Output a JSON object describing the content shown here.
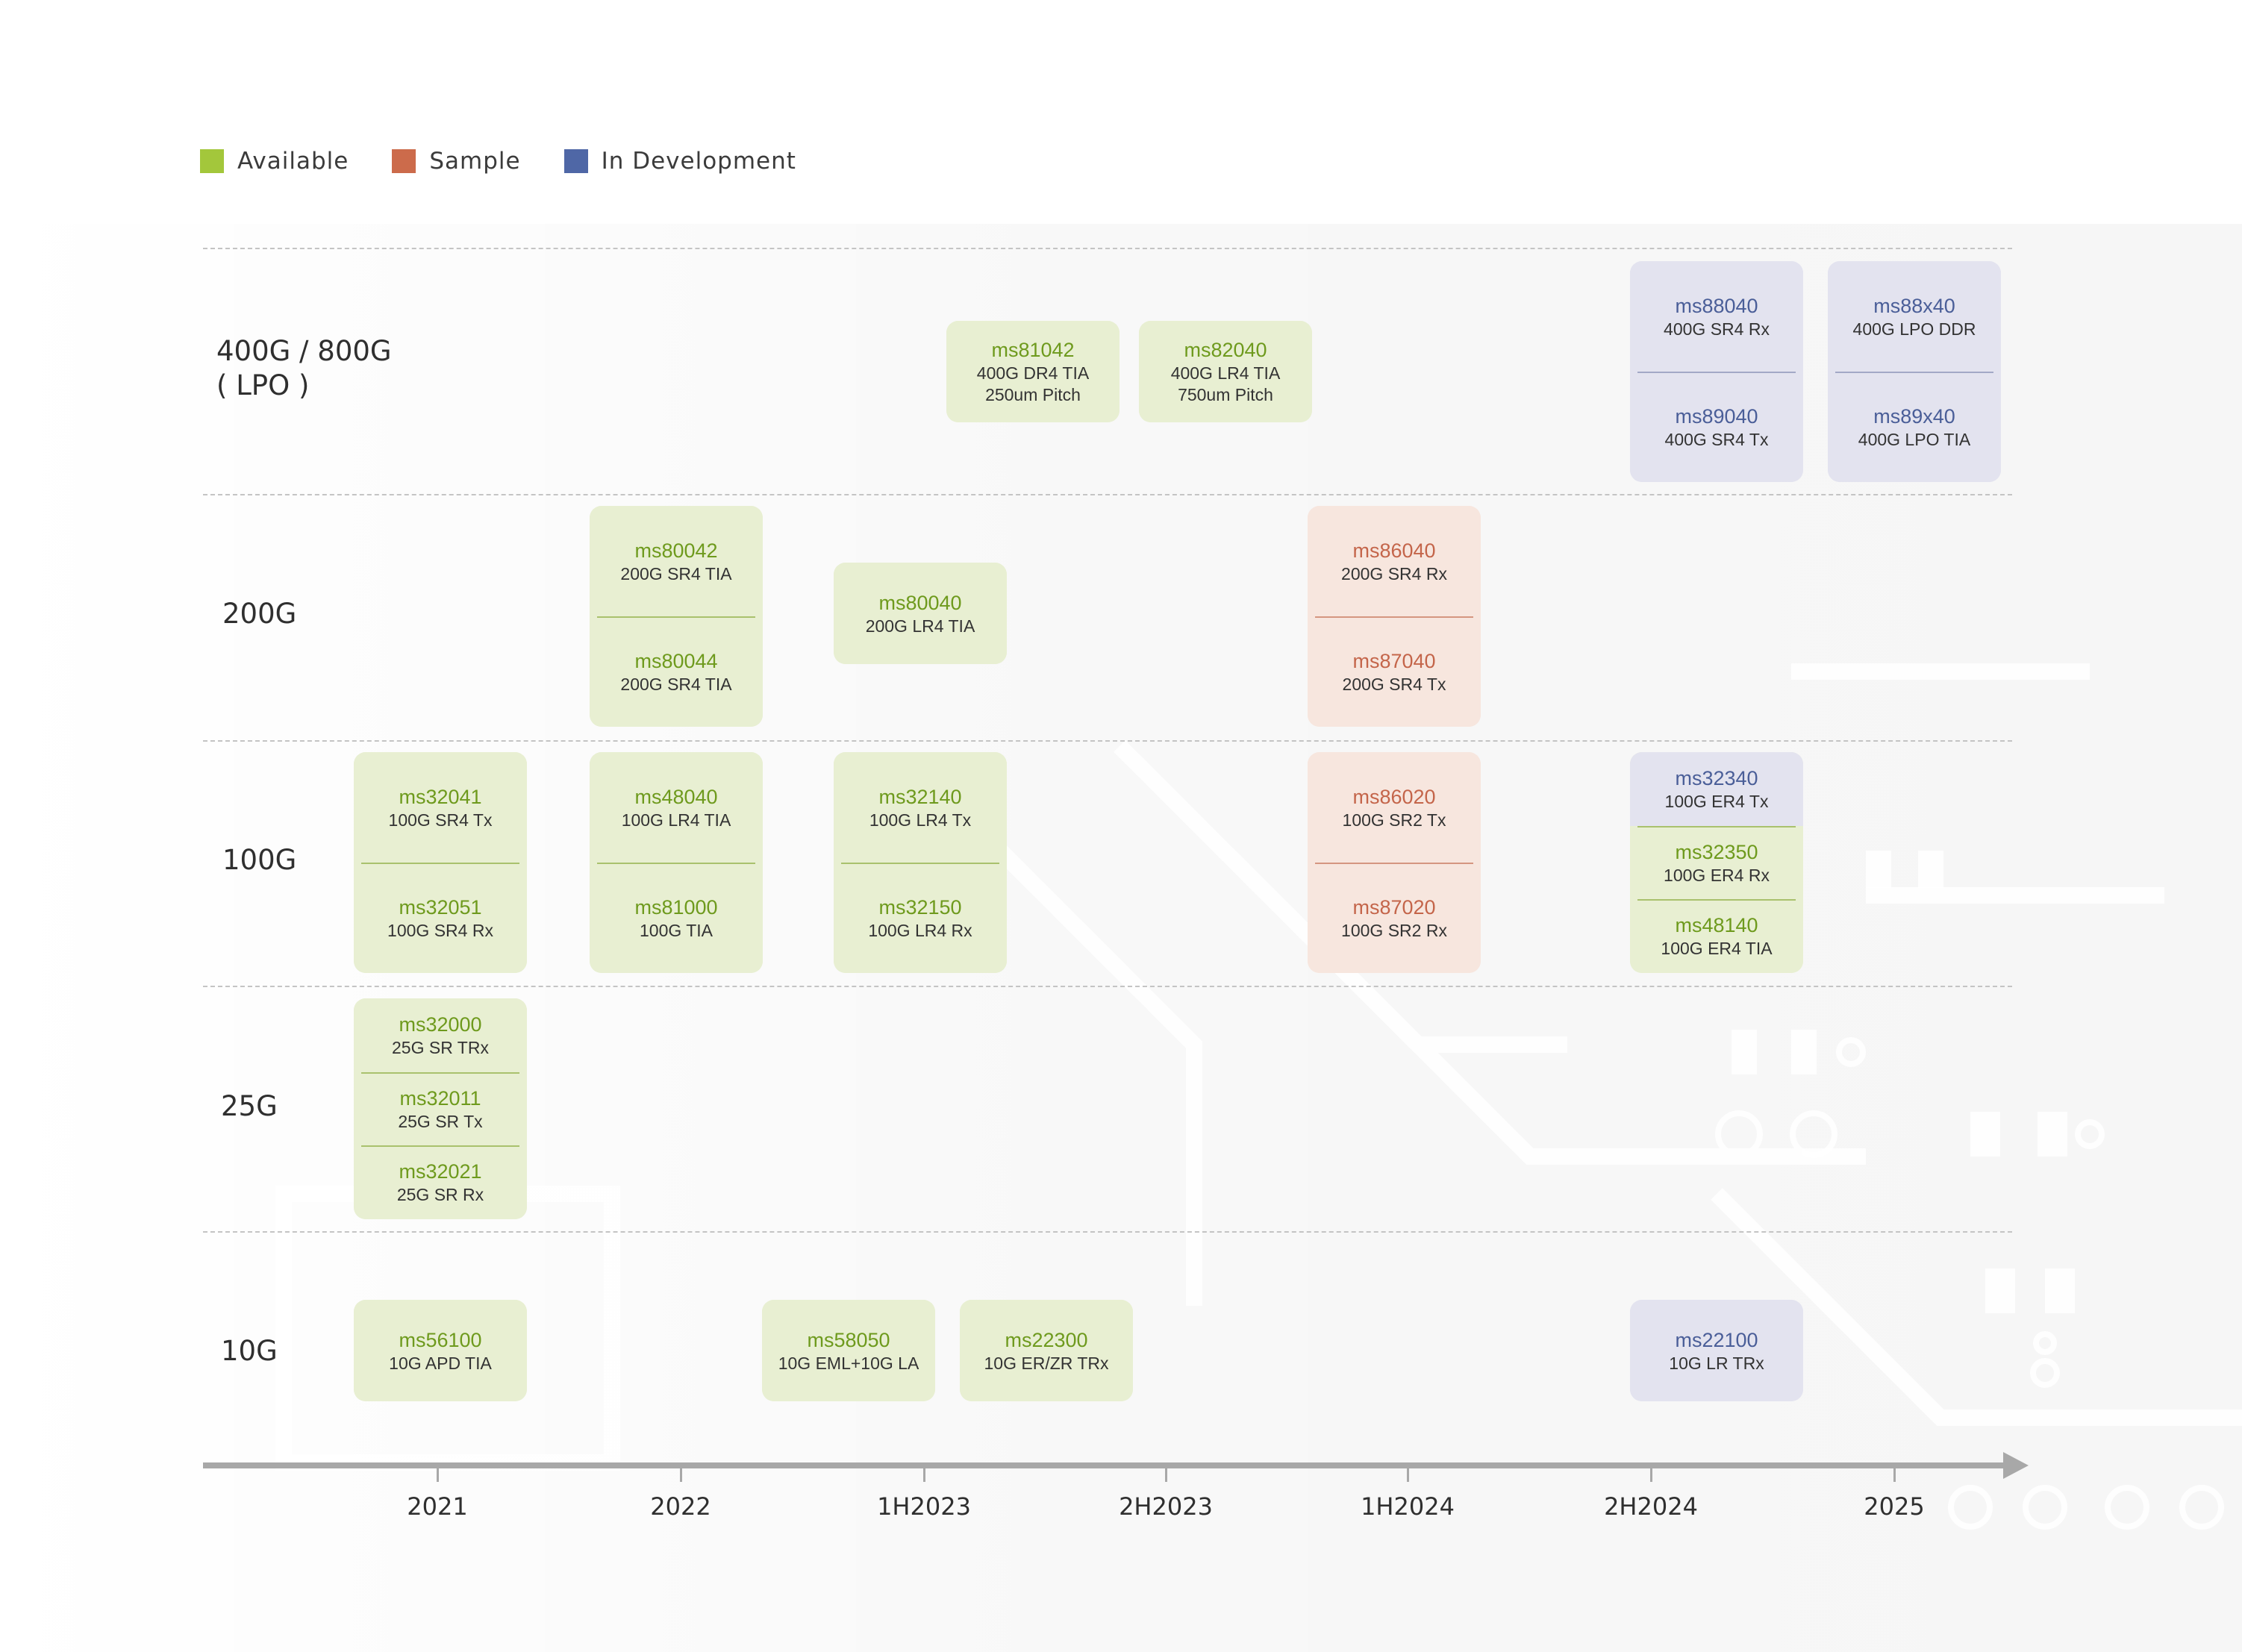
{
  "legend": [
    {
      "label": "Available",
      "color": "#a3c73b"
    },
    {
      "label": "Sample",
      "color": "#cc6b4b"
    },
    {
      "label": "In Development",
      "color": "#4f67a6"
    }
  ],
  "rows": [
    {
      "label": "400G / 800G\n( LPO )"
    },
    {
      "label": "200G"
    },
    {
      "label": "100G"
    },
    {
      "label": "25G"
    },
    {
      "label": "10G"
    }
  ],
  "axis": {
    "ticks": [
      "2021",
      "2022",
      "1H2023",
      "2H2023",
      "1H2024",
      "2H2024",
      "2025"
    ]
  },
  "cards": [
    {
      "items": [
        {
          "part": "ms81042",
          "desc": "400G DR4 TIA\n250um Pitch",
          "status": "available"
        }
      ]
    },
    {
      "items": [
        {
          "part": "ms82040",
          "desc": "400G LR4 TIA\n750um Pitch",
          "status": "available"
        }
      ]
    },
    {
      "items": [
        {
          "part": "ms88040",
          "desc": "400G SR4 Rx",
          "status": "dev"
        },
        {
          "part": "ms89040",
          "desc": "400G SR4 Tx",
          "status": "dev"
        }
      ]
    },
    {
      "items": [
        {
          "part": "ms88x40",
          "desc": "400G LPO DDR",
          "status": "dev"
        },
        {
          "part": "ms89x40",
          "desc": "400G LPO TIA",
          "status": "dev"
        }
      ]
    },
    {
      "items": [
        {
          "part": "ms80042",
          "desc": "200G SR4 TIA",
          "status": "available"
        },
        {
          "part": "ms80044",
          "desc": "200G SR4 TIA",
          "status": "available"
        }
      ]
    },
    {
      "items": [
        {
          "part": "ms80040",
          "desc": "200G LR4 TIA",
          "status": "available"
        }
      ]
    },
    {
      "items": [
        {
          "part": "ms86040",
          "desc": "200G SR4 Rx",
          "status": "sample"
        },
        {
          "part": "ms87040",
          "desc": "200G SR4 Tx",
          "status": "sample"
        }
      ]
    },
    {
      "items": [
        {
          "part": "ms32041",
          "desc": "100G SR4 Tx",
          "status": "available"
        },
        {
          "part": "ms32051",
          "desc": "100G SR4 Rx",
          "status": "available"
        }
      ]
    },
    {
      "items": [
        {
          "part": "ms48040",
          "desc": "100G LR4 TIA",
          "status": "available"
        },
        {
          "part": "ms81000",
          "desc": "100G  TIA",
          "status": "available"
        }
      ]
    },
    {
      "items": [
        {
          "part": "ms32140",
          "desc": "100G LR4 Tx",
          "status": "available"
        },
        {
          "part": "ms32150",
          "desc": "100G LR4 Rx",
          "status": "available"
        }
      ]
    },
    {
      "items": [
        {
          "part": "ms86020",
          "desc": "100G SR2 Tx",
          "status": "sample"
        },
        {
          "part": "ms87020",
          "desc": "100G SR2 Rx",
          "status": "sample"
        }
      ]
    },
    {
      "items": [
        {
          "part": "ms32340",
          "desc": "100G ER4 Tx",
          "status": "dev"
        },
        {
          "part": "ms32350",
          "desc": "100G ER4 Rx",
          "status": "available"
        },
        {
          "part": "ms48140",
          "desc": "100G ER4 TIA",
          "status": "available"
        }
      ]
    },
    {
      "items": [
        {
          "part": "ms32000",
          "desc": "25G SR TRx",
          "status": "available"
        },
        {
          "part": "ms32011",
          "desc": "25G SR Tx",
          "status": "available"
        },
        {
          "part": "ms32021",
          "desc": "25G SR Rx",
          "status": "available"
        }
      ]
    },
    {
      "items": [
        {
          "part": "ms56100",
          "desc": "10G APD TIA",
          "status": "available"
        }
      ]
    },
    {
      "items": [
        {
          "part": "ms58050",
          "desc": "10G EML+10G LA",
          "status": "available"
        }
      ]
    },
    {
      "items": [
        {
          "part": "ms22300",
          "desc": "10G ER/ZR TRx",
          "status": "available"
        }
      ]
    },
    {
      "items": [
        {
          "part": "ms22100",
          "desc": "10G LR TRx",
          "status": "dev"
        }
      ]
    }
  ]
}
